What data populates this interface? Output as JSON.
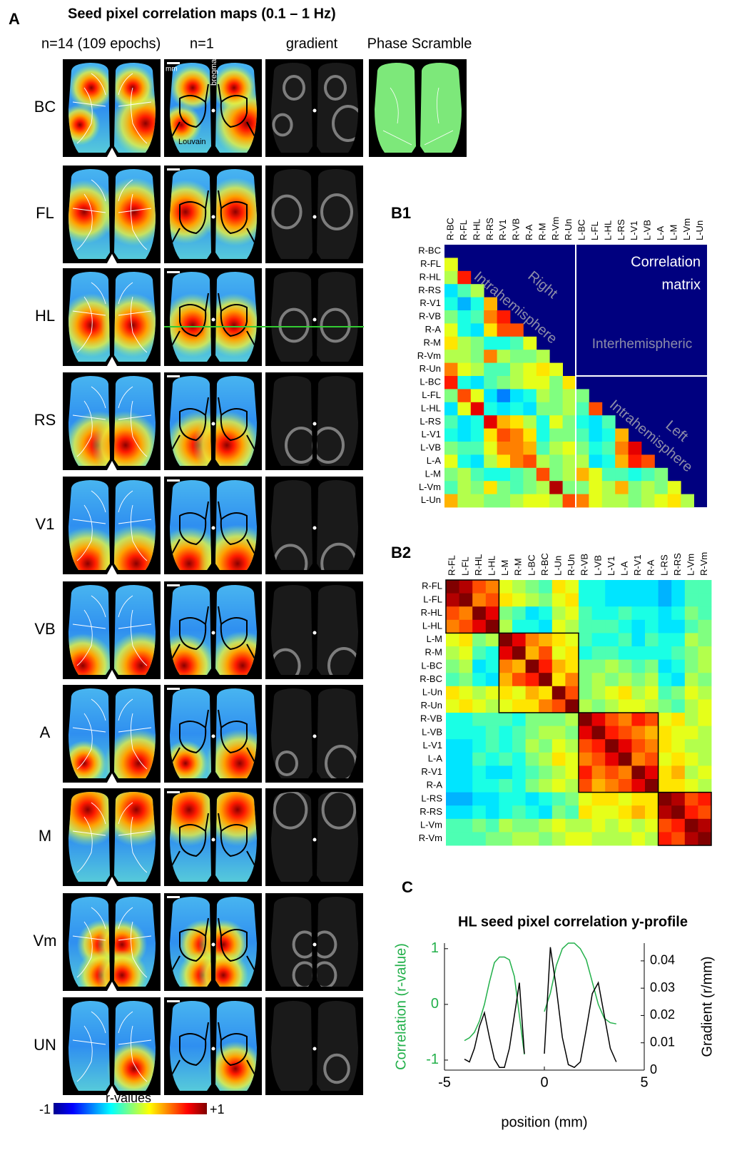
{
  "panel_a": {
    "label": "A",
    "title": "Seed pixel correlation maps (0.1 – 1 Hz)",
    "columns": [
      "n=14 (109 epochs)",
      "n=1",
      "gradient",
      "Phase Scramble"
    ],
    "rows": [
      "BC",
      "FL",
      "HL",
      "RS",
      "V1",
      "VB",
      "A",
      "M",
      "Vm",
      "UN"
    ],
    "annotations": {
      "scale": "mm",
      "bregma": "bregma",
      "atlas": "Louvain"
    },
    "colorbar": {
      "label": "r-values",
      "zlim": [
        -1,
        1
      ],
      "ticks": [
        -1,
        {
          "value": 1,
          "label": "+1"
        }
      ]
    }
  },
  "chart_data": [
    {
      "type": "heatmap",
      "panel_label": "B1",
      "categories": [
        "R-BC",
        "R-FL",
        "R-HL",
        "R-RS",
        "R-V1",
        "R-VB",
        "R-A",
        "R-M",
        "R-Vm",
        "R-Un",
        "L-BC",
        "L-FL",
        "L-HL",
        "L-RS",
        "L-V1",
        "L-VB",
        "L-A",
        "L-M",
        "L-Vm",
        "L-Un"
      ],
      "values": [
        [],
        [
          0.2
        ],
        [
          0.1,
          0.7
        ],
        [
          -0.3,
          -0.1,
          0.1
        ],
        [
          -0.2,
          -0.4,
          -0.2,
          0.4
        ],
        [
          0.0,
          -0.2,
          -0.1,
          0.5,
          0.7
        ],
        [
          0.2,
          -0.2,
          -0.3,
          0.3,
          0.6,
          0.6
        ],
        [
          0.3,
          0.1,
          0.0,
          -0.2,
          -0.2,
          -0.1,
          0.2
        ],
        [
          0.1,
          0.1,
          0.0,
          0.5,
          0.1,
          0.0,
          0.0,
          0.1
        ],
        [
          0.5,
          0.2,
          0.1,
          -0.1,
          -0.1,
          0.1,
          0.2,
          0.3,
          0.2
        ],
        [
          0.7,
          -0.2,
          -0.3,
          -0.1,
          0.0,
          0.1,
          0.2,
          0.2,
          0.0,
          0.3
        ],
        [
          0.0,
          0.6,
          0.2,
          -0.3,
          -0.5,
          -0.3,
          -0.2,
          0.1,
          0.0,
          0.1,
          0.0
        ],
        [
          -0.3,
          0.2,
          0.8,
          -0.2,
          -0.3,
          -0.2,
          -0.3,
          0.0,
          0.0,
          0.1,
          -0.1,
          0.6
        ],
        [
          -0.1,
          -0.3,
          -0.2,
          0.8,
          0.4,
          0.3,
          0.1,
          -0.2,
          0.2,
          0.0,
          -0.2,
          -0.3,
          -0.1
        ],
        [
          -0.2,
          -0.3,
          -0.2,
          0.3,
          0.6,
          0.5,
          0.3,
          -0.2,
          0.0,
          0.0,
          -0.1,
          -0.3,
          -0.2,
          0.4
        ],
        [
          0.0,
          -0.1,
          -0.1,
          0.2,
          0.5,
          0.5,
          0.4,
          -0.1,
          0.1,
          0.2,
          0.0,
          -0.2,
          -0.1,
          0.5,
          0.8
        ],
        [
          0.2,
          -0.2,
          -0.3,
          0.1,
          0.3,
          0.5,
          0.6,
          0.1,
          0.0,
          0.1,
          0.1,
          -0.3,
          -0.2,
          0.4,
          0.7,
          0.6
        ],
        [
          0.0,
          0.1,
          -0.1,
          -0.2,
          -0.2,
          -0.1,
          0.0,
          0.6,
          0.0,
          0.1,
          0.4,
          0.2,
          -0.1,
          -0.1,
          -0.2,
          -0.1,
          0.0
        ],
        [
          -0.1,
          0.1,
          0.0,
          0.3,
          0.0,
          -0.1,
          0.0,
          0.1,
          0.9,
          0.0,
          0.0,
          0.2,
          0.1,
          0.4,
          0.0,
          0.1,
          0.0,
          0.2
        ],
        [
          0.4,
          0.1,
          0.1,
          0.0,
          0.0,
          0.1,
          0.2,
          0.2,
          0.1,
          0.6,
          0.5,
          0.2,
          0.1,
          0.1,
          0.0,
          0.1,
          0.2,
          0.3,
          0.1
        ]
      ],
      "zlim": [
        -1,
        1
      ],
      "colormap": "jet",
      "background": "#00007f",
      "divider": 10,
      "annotations": {
        "title_lines": [
          "Correlation",
          "matrix"
        ],
        "right_lines": [
          "Right",
          "Intrahemisphere"
        ],
        "inter": "Interhemispheric",
        "left_lines": [
          "Left",
          "Intrahemisphere"
        ]
      }
    },
    {
      "type": "heatmap",
      "panel_label": "B2",
      "categories": [
        "R-FL",
        "L-FL",
        "R-HL",
        "L-HL",
        "L-M",
        "R-M",
        "L-BC",
        "R-BC",
        "L-Un",
        "R-Un",
        "R-VB",
        "L-VB",
        "L-V1",
        "L-A",
        "R-V1",
        "R-A",
        "L-RS",
        "R-RS",
        "L-Vm",
        "R-Vm"
      ],
      "values": [
        [
          1,
          0.9,
          0.6,
          0.5,
          0.2,
          0.1,
          0,
          -0.1,
          0.3,
          0.2,
          -0.2,
          -0.2,
          -0.3,
          -0.3,
          -0.3,
          -0.3,
          -0.4,
          -0.3,
          -0.1,
          -0.1
        ],
        [
          0.9,
          1,
          0.5,
          0.6,
          0.3,
          0.2,
          0.1,
          0,
          0.2,
          0.3,
          -0.2,
          -0.2,
          -0.3,
          -0.3,
          -0.3,
          -0.3,
          -0.4,
          -0.3,
          -0.1,
          -0.1
        ],
        [
          0.6,
          0.5,
          1,
          0.8,
          0,
          -0.1,
          -0.3,
          -0.2,
          0.1,
          0.2,
          -0.1,
          -0.2,
          -0.2,
          -0.1,
          -0.2,
          -0.2,
          -0.3,
          -0.2,
          0,
          -0.1
        ],
        [
          0.5,
          0.6,
          0.8,
          1,
          0.1,
          -0.2,
          -0.2,
          -0.3,
          0.2,
          0.1,
          -0.1,
          -0.1,
          -0.1,
          -0.2,
          -0.3,
          -0.2,
          -0.3,
          -0.3,
          -0.1,
          0
        ],
        [
          0.2,
          0.3,
          0,
          0.1,
          1,
          0.8,
          0.5,
          0.4,
          0.3,
          0.2,
          -0.1,
          -0.2,
          -0.2,
          -0.1,
          -0.3,
          -0.1,
          -0.2,
          -0.2,
          0.1,
          0
        ],
        [
          0.1,
          0.2,
          -0.1,
          -0.2,
          0.8,
          1,
          0.4,
          0.6,
          0.2,
          0.3,
          -0.2,
          -0.1,
          -0.1,
          -0.2,
          -0.2,
          -0.2,
          -0.2,
          -0.1,
          0,
          0.1
        ],
        [
          0,
          0.1,
          -0.3,
          -0.2,
          0.5,
          0.4,
          1,
          0.7,
          0.4,
          0.3,
          0,
          0,
          0.1,
          0,
          -0.1,
          0,
          -0.3,
          -0.2,
          0,
          0.1
        ],
        [
          -0.1,
          0,
          -0.2,
          -0.3,
          0.4,
          0.6,
          0.7,
          1,
          0.3,
          0.5,
          0,
          0.1,
          0,
          0.1,
          0,
          0.1,
          -0.2,
          -0.3,
          0.1,
          0
        ],
        [
          0.3,
          0.2,
          0.1,
          0.2,
          0.3,
          0.2,
          0.4,
          0.3,
          1,
          0.6,
          0,
          0.1,
          0.2,
          0.3,
          0.1,
          0.2,
          -0.1,
          0,
          0.2,
          0.1
        ],
        [
          0.2,
          0.3,
          0.2,
          0.1,
          0.2,
          0.3,
          0.3,
          0.5,
          0.6,
          1,
          0.1,
          0,
          0.1,
          0.2,
          0.2,
          0.1,
          0,
          -0.1,
          0.1,
          0.2
        ],
        [
          -0.2,
          -0.2,
          -0.1,
          -0.1,
          -0.1,
          -0.2,
          0,
          0,
          0,
          0.1,
          1,
          0.8,
          0.6,
          0.5,
          0.7,
          0.6,
          0.2,
          0.3,
          0.1,
          0.2
        ],
        [
          -0.2,
          -0.2,
          -0.2,
          -0.1,
          -0.2,
          -0.1,
          0,
          0.1,
          0.1,
          0,
          0.8,
          1,
          0.7,
          0.6,
          0.5,
          0.4,
          0.3,
          0.2,
          0.2,
          0.1
        ],
        [
          -0.3,
          -0.3,
          -0.2,
          -0.1,
          -0.2,
          -0.1,
          0.1,
          0,
          0.2,
          0.1,
          0.6,
          0.7,
          1,
          0.8,
          0.6,
          0.5,
          0.3,
          0.2,
          0.1,
          0.1
        ],
        [
          -0.3,
          -0.3,
          -0.1,
          -0.2,
          -0.1,
          -0.2,
          0,
          0.1,
          0.3,
          0.2,
          0.5,
          0.6,
          0.8,
          1,
          0.5,
          0.6,
          0.2,
          0.3,
          0.2,
          0.1
        ],
        [
          -0.3,
          -0.3,
          -0.2,
          -0.3,
          -0.3,
          -0.2,
          -0.1,
          0,
          0.1,
          0.2,
          0.7,
          0.5,
          0.6,
          0.5,
          1,
          0.8,
          0.3,
          0.4,
          0.1,
          0.2
        ],
        [
          -0.3,
          -0.3,
          -0.2,
          -0.2,
          -0.1,
          -0.2,
          0,
          0.1,
          0.2,
          0.1,
          0.6,
          0.4,
          0.5,
          0.6,
          0.8,
          1,
          0.3,
          0.3,
          0.2,
          0.1
        ],
        [
          -0.4,
          -0.4,
          -0.3,
          -0.3,
          -0.2,
          -0.2,
          -0.3,
          -0.2,
          -0.1,
          0,
          0.2,
          0.3,
          0.3,
          0.2,
          0.3,
          0.3,
          1,
          0.9,
          0.6,
          0.7
        ],
        [
          -0.3,
          -0.3,
          -0.2,
          -0.3,
          -0.2,
          -0.1,
          -0.2,
          -0.3,
          0,
          -0.1,
          0.3,
          0.2,
          0.2,
          0.3,
          0.4,
          0.3,
          0.9,
          1,
          0.7,
          0.6
        ],
        [
          -0.1,
          -0.1,
          0,
          -0.1,
          0.1,
          0,
          0,
          0.1,
          0.2,
          0.1,
          0.1,
          0.2,
          0.1,
          0.2,
          0.1,
          0.2,
          0.6,
          0.7,
          1,
          0.9
        ],
        [
          -0.1,
          -0.1,
          -0.1,
          0,
          0,
          0.1,
          0.1,
          0,
          0.1,
          0.2,
          0.2,
          0.1,
          0.1,
          0.1,
          0.2,
          0.1,
          0.7,
          0.6,
          0.9,
          1
        ]
      ],
      "zlim": [
        -1,
        1
      ],
      "colormap": "jet",
      "boxes": [
        [
          0,
          3
        ],
        [
          4,
          9
        ],
        [
          10,
          15
        ],
        [
          16,
          19
        ]
      ]
    },
    {
      "type": "line",
      "panel_label": "C",
      "title": "HL seed pixel correlation y-profile",
      "x_label": "position (mm)",
      "y_label": "Correlation (r-value)",
      "y2_label": "Gradient (r/mm)",
      "x": [
        -4,
        -3.75,
        -3.5,
        -3.25,
        -3,
        -2.75,
        -2.5,
        -2.25,
        -2,
        -1.75,
        -1.5,
        -1.25,
        -1,
        -0.5,
        0,
        0.3,
        0.6,
        0.9,
        1.2,
        1.5,
        1.8,
        2.1,
        2.4,
        2.7,
        3,
        3.3,
        3.6
      ],
      "series": [
        {
          "color": "#22b04a",
          "values": [
            -0.65,
            -0.6,
            -0.5,
            -0.3,
            0.0,
            0.4,
            0.75,
            0.85,
            0.85,
            0.8,
            0.5,
            -0.2,
            -0.9,
            null,
            -0.13,
            0.2,
            0.7,
            1.0,
            1.1,
            1.1,
            1.0,
            0.8,
            0.4,
            0.0,
            -0.25,
            -0.33,
            -0.35
          ]
        },
        {
          "color": "#000000",
          "axis": "y2",
          "values": [
            0.004,
            0.003,
            0.008,
            0.016,
            0.021,
            0.012,
            0.004,
            0.001,
            0.001,
            0.008,
            0.02,
            0.032,
            0.006,
            null,
            0.006,
            0.045,
            0.03,
            0.012,
            0.002,
            0.001,
            0.003,
            0.015,
            0.028,
            0.032,
            0.02,
            0.008,
            0.003
          ]
        }
      ],
      "xlim": [
        -5,
        5
      ],
      "xticks": [
        -5,
        0,
        5
      ],
      "ylim": [
        -1.18,
        1.1
      ],
      "yticks": [
        -1,
        0,
        1
      ],
      "y2lim": [
        0,
        0.0465
      ],
      "y2ticks": [
        0,
        0.01,
        0.02,
        0.03,
        0.04
      ],
      "y_label_color": "#22b04a",
      "grid": false
    }
  ]
}
